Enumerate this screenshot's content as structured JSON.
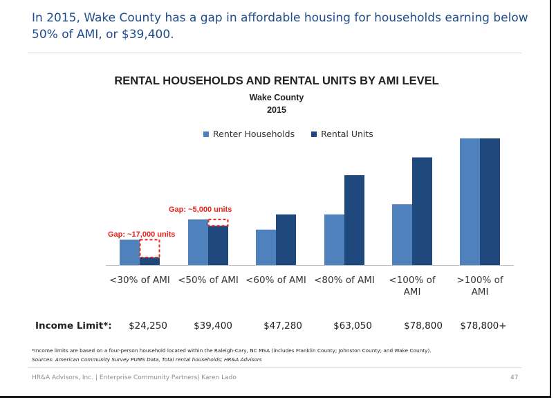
{
  "headline": "In 2015, Wake County has a gap in affordable housing for households earning below 50% of AMI, or $39,400.",
  "chart_data": {
    "type": "bar",
    "title": "RENTAL HOUSEHOLDS AND RENTAL UNITS BY AMI LEVEL",
    "subtitle_line1": "Wake County",
    "subtitle_line2": "2015",
    "categories": [
      [
        "<30% of AMI"
      ],
      [
        "<50% of AMI"
      ],
      [
        "<60% of AMI"
      ],
      [
        "<80% of AMI"
      ],
      [
        "<100% of",
        "AMI"
      ],
      [
        ">100% of",
        "AMI"
      ]
    ],
    "series": [
      {
        "name": "Renter Households",
        "color": "#4f81bd",
        "values": [
          20,
          36,
          28,
          40,
          48,
          100
        ]
      },
      {
        "name": "Rental Units",
        "color": "#1f497d",
        "values": [
          6,
          31,
          40,
          71,
          85,
          100
        ]
      }
    ],
    "gaps": [
      {
        "label": "Gap: ~17,000 units",
        "category_index": 0,
        "from": 6,
        "to": 20,
        "color": "#e8251c"
      },
      {
        "label": "Gap: ~5,000 units",
        "category_index": 1,
        "from": 31,
        "to": 36,
        "color": "#e8251c"
      }
    ],
    "ylim": [
      0,
      100
    ],
    "grid": false,
    "legend_position": "top"
  },
  "income": {
    "label": "Income Limit*:",
    "values": [
      "$24,250",
      "$39,400",
      "$47,280",
      "$63,050",
      "$78,800",
      "$78,800+"
    ]
  },
  "footnote": {
    "line1": "*Income limits are based on a four-person household located within the Raleigh-Cary, NC MSA (includes Franklin County; Johnston County; and Wake County).",
    "line2": "Sources: American Community Survey PUMS Data, Total rental households; HR&A Advisors"
  },
  "footer": {
    "text": "HR&A Advisors, Inc. | Enterprise Community Partners| Karen Lado",
    "page": "47"
  }
}
